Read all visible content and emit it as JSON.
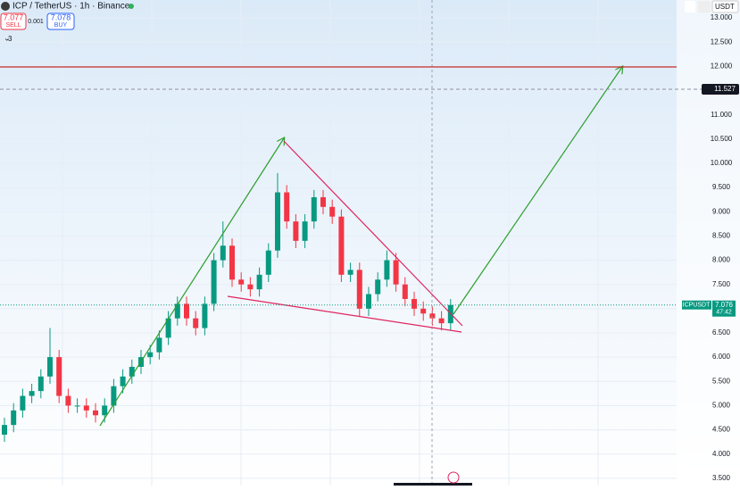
{
  "header": {
    "symbol": "ICP / TetherUS · 1h · Binance",
    "sell_price": "7.077",
    "sell_label": "SELL",
    "spread": "0.001",
    "buy_price": "7.078",
    "buy_label": "BUY",
    "indicator_count": "3",
    "currency": "USDT"
  },
  "chart_data": {
    "type": "candlestick",
    "up_color": "#089981",
    "down_color": "#f23645",
    "open": [
      4.4,
      4.6,
      4.9,
      5.2,
      5.3,
      5.6,
      6.0,
      5.2,
      5.0,
      5.0,
      4.9,
      4.8,
      5.0,
      5.4,
      5.6,
      5.8,
      6.0,
      6.1,
      6.4,
      6.8,
      7.1,
      6.8,
      6.6,
      7.1,
      8.0,
      8.3,
      7.6,
      7.5,
      7.4,
      7.7,
      8.2,
      9.4,
      8.8,
      8.4,
      8.8,
      9.3,
      9.1,
      8.9,
      7.7,
      7.8,
      7.0,
      7.3,
      7.6,
      8.0,
      7.5,
      7.2,
      7.0,
      6.9,
      6.8,
      6.7
    ],
    "high": [
      4.75,
      5.05,
      5.35,
      5.45,
      5.75,
      6.6,
      6.15,
      5.35,
      5.15,
      5.15,
      5.05,
      5.15,
      5.55,
      5.75,
      5.95,
      6.15,
      6.25,
      6.55,
      6.95,
      7.25,
      7.25,
      6.95,
      7.25,
      8.15,
      8.8,
      8.45,
      7.75,
      7.65,
      7.85,
      8.35,
      9.8,
      9.55,
      8.95,
      8.95,
      9.45,
      9.45,
      9.25,
      9.05,
      7.95,
      7.95,
      7.45,
      7.75,
      8.2,
      8.15,
      7.65,
      7.35,
      7.15,
      7.05,
      6.95,
      7.2
    ],
    "low": [
      4.25,
      4.45,
      4.75,
      5.05,
      5.15,
      5.45,
      5.05,
      4.85,
      4.85,
      4.75,
      4.65,
      4.65,
      4.85,
      5.25,
      5.45,
      5.65,
      5.85,
      5.95,
      6.25,
      6.65,
      6.65,
      6.45,
      6.45,
      6.95,
      7.85,
      7.45,
      7.35,
      7.25,
      7.25,
      7.55,
      8.05,
      8.65,
      8.25,
      8.25,
      8.65,
      8.95,
      8.75,
      7.55,
      7.55,
      6.85,
      6.85,
      7.15,
      7.45,
      7.35,
      7.05,
      6.85,
      6.75,
      6.65,
      6.55,
      6.55
    ],
    "close": [
      4.6,
      4.9,
      5.2,
      5.3,
      5.6,
      6.0,
      5.2,
      5.0,
      5.0,
      4.9,
      4.8,
      5.0,
      5.4,
      5.6,
      5.8,
      6.0,
      6.1,
      6.4,
      6.8,
      7.1,
      6.8,
      6.6,
      7.1,
      8.0,
      8.3,
      7.6,
      7.5,
      7.4,
      7.7,
      8.2,
      9.4,
      8.8,
      8.4,
      8.8,
      9.3,
      9.1,
      8.9,
      7.7,
      7.8,
      7.0,
      7.3,
      7.6,
      8.0,
      7.5,
      7.2,
      7.0,
      6.9,
      6.8,
      6.7,
      7.076
    ],
    "ylim": [
      3.35,
      13.37
    ],
    "yticks": [
      {
        "value": 3.5,
        "label": "3.500"
      },
      {
        "value": 4,
        "label": "4.000"
      },
      {
        "value": 4.5,
        "label": "4.500"
      },
      {
        "value": 5,
        "label": "5.000"
      },
      {
        "value": 5.5,
        "label": "5.500"
      },
      {
        "value": 6,
        "label": "6.000"
      },
      {
        "value": 6.5,
        "label": "6.500"
      },
      {
        "value": 7,
        "label": "7.000"
      },
      {
        "value": 7.5,
        "label": "7.500"
      },
      {
        "value": 8,
        "label": "8.000"
      },
      {
        "value": 8.5,
        "label": "8.500"
      },
      {
        "value": 9,
        "label": "9.000"
      },
      {
        "value": 9.5,
        "label": "9.500"
      },
      {
        "value": 10,
        "label": "10.000"
      },
      {
        "value": 10.5,
        "label": "10.500"
      },
      {
        "value": 11,
        "label": "11.000"
      },
      {
        "value": 11.5,
        "label": "11.500"
      },
      {
        "value": 12,
        "label": "12.000"
      },
      {
        "value": 12.5,
        "label": "12.500"
      },
      {
        "value": 13,
        "label": "13.000"
      }
    ],
    "grid": true,
    "marked_level": {
      "value": 11.527,
      "label": "11.527"
    },
    "last_price": {
      "symbol": "ICPUSDT",
      "value": 7.076,
      "label": "7.076",
      "countdown": "47:42"
    }
  }
}
